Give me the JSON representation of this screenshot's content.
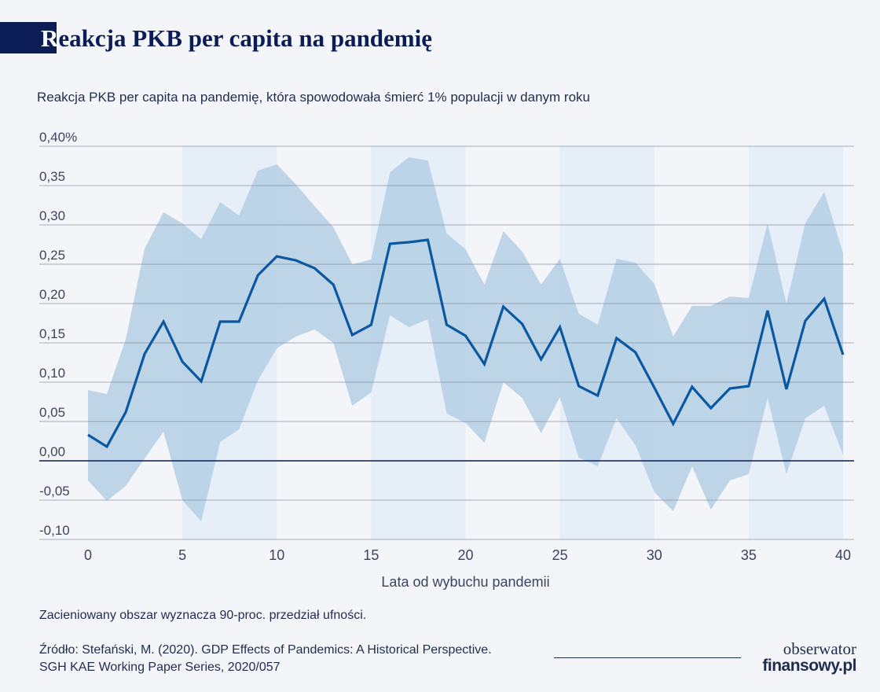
{
  "header": {
    "title_first": "R",
    "title_rest": "eakcja PKB per capita na pandemię",
    "subtitle": "Reakcja PKB per capita na pandemię, która spowodowała śmierć 1% populacji w danym roku"
  },
  "footer": {
    "note": "Zacieniowany obszar wyznacza 90-proc. przedział ufności.",
    "source_line1": "Źródło: Stefański, M. (2020). GDP Effects of Pandemics: A Historical Perspective.",
    "source_line2": "SGH KAE Working Paper Series, 2020/057",
    "logo_top": "obserwator",
    "logo_bottom": "finansowy.pl"
  },
  "colors": {
    "background": "#f3f5f8",
    "band": "#e6eef7",
    "ci_fill": "#b4cfe5",
    "line": "#0b58a0",
    "grid": "#8a93a3",
    "zero_line": "#0c1d55",
    "text": "#1f2d4d",
    "title_block": "#0c1d55"
  },
  "chart_data": {
    "type": "line",
    "xlabel": "Lata od wybuchu pandemii",
    "ylabel": "",
    "xlim": [
      0,
      40
    ],
    "ylim": [
      -0.1,
      0.4
    ],
    "x_ticks": [
      0,
      5,
      10,
      15,
      20,
      25,
      30,
      35,
      40
    ],
    "x_tick_labels": [
      "0",
      "5",
      "10",
      "15",
      "20",
      "25",
      "30",
      "35",
      "40"
    ],
    "y_ticks": [
      -0.1,
      -0.05,
      0.0,
      0.05,
      0.1,
      0.15,
      0.2,
      0.25,
      0.3,
      0.35,
      0.4
    ],
    "y_tick_labels": [
      "-0,10",
      "-0,05",
      "0,00",
      "0,05",
      "0,10",
      "0,15",
      "0,20",
      "0,25",
      "0,30",
      "0,35",
      "0,40%"
    ],
    "grid": true,
    "shaded_bands": [
      [
        5,
        10
      ],
      [
        15,
        20
      ],
      [
        25,
        30
      ],
      [
        35,
        40
      ]
    ],
    "x": [
      0,
      1,
      2,
      3,
      4,
      5,
      6,
      7,
      8,
      9,
      10,
      11,
      12,
      13,
      14,
      15,
      16,
      17,
      18,
      19,
      20,
      21,
      22,
      23,
      24,
      25,
      26,
      27,
      28,
      29,
      30,
      31,
      32,
      33,
      34,
      35,
      36,
      37,
      38,
      39,
      40
    ],
    "series": [
      {
        "values": [
          0.033,
          0.018,
          0.062,
          0.136,
          0.177,
          0.126,
          0.101,
          0.177,
          0.177,
          0.236,
          0.26,
          0.255,
          0.245,
          0.224,
          0.16,
          0.173,
          0.276,
          0.278,
          0.281,
          0.173,
          0.159,
          0.123,
          0.196,
          0.174,
          0.129,
          0.17,
          0.095,
          0.083,
          0.156,
          0.138,
          0.093,
          0.047,
          0.094,
          0.067,
          0.092,
          0.095,
          0.191,
          0.091,
          0.178,
          0.206,
          0.135
        ]
      }
    ],
    "confidence_interval": {
      "level": "90%",
      "upper": [
        0.09,
        0.085,
        0.155,
        0.27,
        0.316,
        0.302,
        0.282,
        0.329,
        0.312,
        0.369,
        0.377,
        0.352,
        0.324,
        0.297,
        0.25,
        0.256,
        0.367,
        0.386,
        0.382,
        0.289,
        0.269,
        0.224,
        0.292,
        0.266,
        0.224,
        0.257,
        0.187,
        0.173,
        0.257,
        0.252,
        0.225,
        0.158,
        0.197,
        0.197,
        0.209,
        0.207,
        0.302,
        0.2,
        0.302,
        0.342,
        0.264
      ],
      "lower": [
        -0.025,
        -0.051,
        -0.032,
        0.003,
        0.037,
        -0.05,
        -0.077,
        0.024,
        0.04,
        0.102,
        0.143,
        0.158,
        0.167,
        0.15,
        0.07,
        0.087,
        0.185,
        0.17,
        0.18,
        0.06,
        0.048,
        0.023,
        0.1,
        0.08,
        0.035,
        0.081,
        0.004,
        -0.007,
        0.054,
        0.02,
        -0.04,
        -0.064,
        -0.007,
        -0.062,
        -0.025,
        -0.017,
        0.08,
        -0.017,
        0.054,
        0.07,
        0.007
      ]
    }
  }
}
